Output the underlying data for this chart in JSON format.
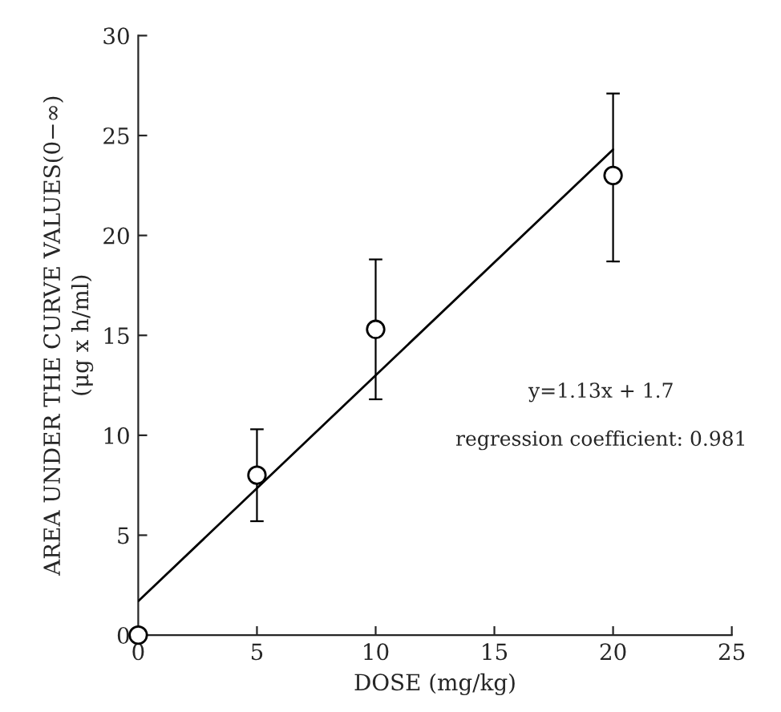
{
  "chart_data": {
    "type": "scatter",
    "xlabel": "DOSE (mg/kg)",
    "ylabel": "AREA UNDER THE CURVE VALUES(0−∞)\n(μg x h/ml)",
    "x": [
      0,
      5,
      10,
      20
    ],
    "series": [
      {
        "color": "#000000",
        "marker": "circle",
        "values": [
          0,
          8.0,
          15.3,
          23.0
        ],
        "errors": [
          null,
          [
            5.7,
            10.3
          ],
          [
            11.8,
            18.8
          ],
          [
            18.7,
            27.1
          ]
        ]
      },
      {
        "type": "line",
        "color": "#000000",
        "marker": "none",
        "line_style": "solid",
        "x": [
          0,
          20
        ],
        "values": [
          1.7,
          24.3
        ]
      }
    ],
    "annotations": [
      "y=1.13x + 1.7",
      "regression coefficient: 0.981"
    ],
    "xlim": [
      0,
      25
    ],
    "ylim": [
      0,
      30
    ],
    "xticks": [
      0,
      5,
      10,
      15,
      20,
      25
    ],
    "yticks": [
      0,
      5,
      10,
      15,
      20,
      25,
      30
    ],
    "grid": false,
    "legend": false
  }
}
